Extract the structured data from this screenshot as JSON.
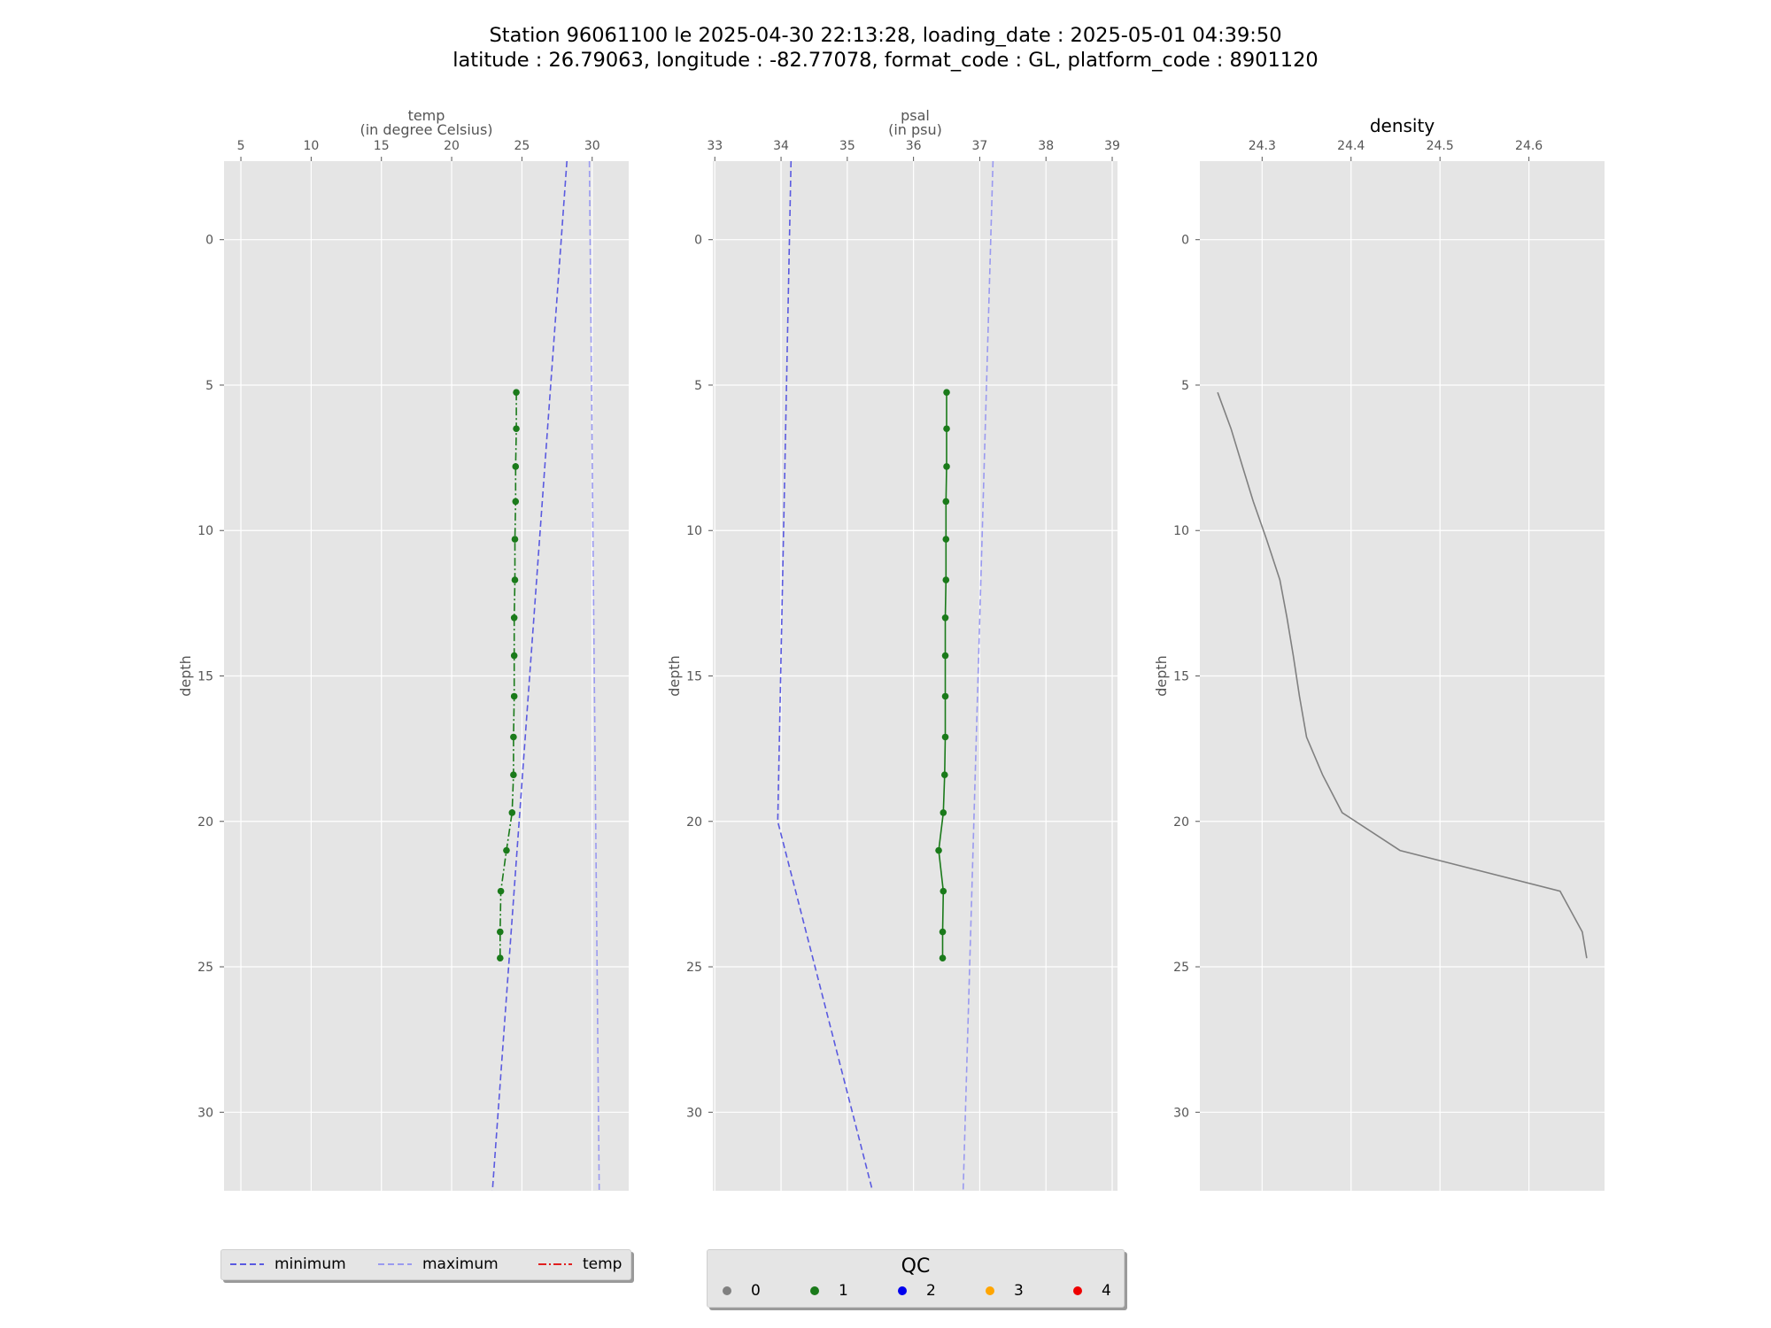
{
  "title": {
    "line1": "Station 96061100 le 2025-04-30 22:13:28, loading_date : 2025-05-01 04:39:50",
    "line2": "latitude : 26.79063, longitude : -82.77078, format_code : GL, platform_code : 8901120"
  },
  "chart_data": [
    {
      "type": "line",
      "panel": "temp",
      "top_label_1": "temp",
      "top_label_2": "(in degree Celsius)",
      "ylabel": "depth",
      "xlim": [
        3.8,
        32.6
      ],
      "ylim": [
        32.7,
        -2.7
      ],
      "xticks": [
        5,
        10,
        15,
        20,
        25,
        30
      ],
      "yticks": [
        0,
        5,
        10,
        15,
        20,
        25,
        30
      ],
      "series": [
        {
          "name": "minimum",
          "style": "dashed",
          "color": "#5a5ae0",
          "x": [
            28.2,
            22.9
          ],
          "y": [
            -2.7,
            32.7
          ]
        },
        {
          "name": "maximum",
          "style": "dashed",
          "color": "#9a9af0",
          "x": [
            29.8,
            30.5
          ],
          "y": [
            -2.7,
            32.7
          ]
        },
        {
          "name": "temp",
          "style": "dashdot",
          "color": "#1a7a1a",
          "qc": 1,
          "depth": [
            5.25,
            6.5,
            7.8,
            9.0,
            10.3,
            11.7,
            13.0,
            14.3,
            15.7,
            17.1,
            18.4,
            19.7,
            21.0,
            22.4,
            23.8,
            24.7
          ],
          "x": [
            24.6,
            24.6,
            24.55,
            24.55,
            24.5,
            24.5,
            24.45,
            24.45,
            24.45,
            24.4,
            24.4,
            24.3,
            23.9,
            23.5,
            23.45,
            23.45
          ]
        }
      ]
    },
    {
      "type": "line",
      "panel": "psal",
      "top_label_1": "psal",
      "top_label_2": "(in psu)",
      "ylabel": "depth",
      "xlim": [
        32.97,
        39.08
      ],
      "ylim": [
        32.7,
        -2.7
      ],
      "xticks": [
        33,
        34,
        35,
        36,
        37,
        38,
        39
      ],
      "yticks": [
        0,
        5,
        10,
        15,
        20,
        25,
        30
      ],
      "series": [
        {
          "name": "minimum",
          "style": "dashed",
          "color": "#5a5ae0",
          "x": [
            34.15,
            33.95,
            35.38
          ],
          "y": [
            -2.7,
            20.0,
            32.7
          ]
        },
        {
          "name": "maximum",
          "style": "dashed",
          "color": "#9a9af0",
          "x": [
            37.2,
            36.75
          ],
          "y": [
            -2.7,
            32.7
          ]
        },
        {
          "name": "psal",
          "style": "solid",
          "color": "#1a7a1a",
          "qc": 1,
          "depth": [
            5.25,
            6.5,
            7.8,
            9.0,
            10.3,
            11.7,
            13.0,
            14.3,
            15.7,
            17.1,
            18.4,
            19.7,
            21.0,
            22.4,
            23.8,
            24.7
          ],
          "x": [
            36.5,
            36.5,
            36.5,
            36.49,
            36.49,
            36.49,
            36.48,
            36.48,
            36.48,
            36.48,
            36.47,
            36.45,
            36.38,
            36.45,
            36.44,
            36.44
          ]
        }
      ]
    },
    {
      "type": "line",
      "panel": "density",
      "top_label_1": "density",
      "ylabel": "depth",
      "xlim": [
        24.23,
        24.685
      ],
      "ylim": [
        32.7,
        -2.7
      ],
      "xticks": [
        24.3,
        24.4,
        24.5,
        24.6
      ],
      "yticks": [
        0,
        5,
        10,
        15,
        20,
        25,
        30
      ],
      "series": [
        {
          "name": "density",
          "style": "solid",
          "color": "#808080",
          "depth": [
            5.25,
            6.5,
            7.8,
            9.0,
            10.3,
            11.7,
            13.0,
            14.3,
            15.7,
            17.1,
            18.4,
            19.7,
            21.0,
            22.4,
            23.8,
            24.7
          ],
          "x": [
            24.25,
            24.265,
            24.278,
            24.29,
            24.305,
            24.32,
            24.328,
            24.335,
            24.342,
            24.35,
            24.368,
            24.39,
            24.455,
            24.635,
            24.66,
            24.665
          ]
        }
      ]
    }
  ],
  "legend_lines": {
    "items": [
      {
        "label": "minimum",
        "color": "#5a5ae0",
        "style": "dashed"
      },
      {
        "label": "maximum",
        "color": "#9a9af0",
        "style": "dashed"
      },
      {
        "label": "temp",
        "color": "#e02020",
        "style": "dashdot"
      }
    ]
  },
  "legend_qc": {
    "title": "QC",
    "items": [
      {
        "label": "0",
        "color": "#808080"
      },
      {
        "label": "1",
        "color": "#1a7a1a"
      },
      {
        "label": "2",
        "color": "#0000ee"
      },
      {
        "label": "3",
        "color": "#ffa500"
      },
      {
        "label": "4",
        "color": "#ee0000"
      }
    ]
  },
  "colors": {
    "plot_background": "#e5e5e5",
    "grid": "#ffffff"
  }
}
